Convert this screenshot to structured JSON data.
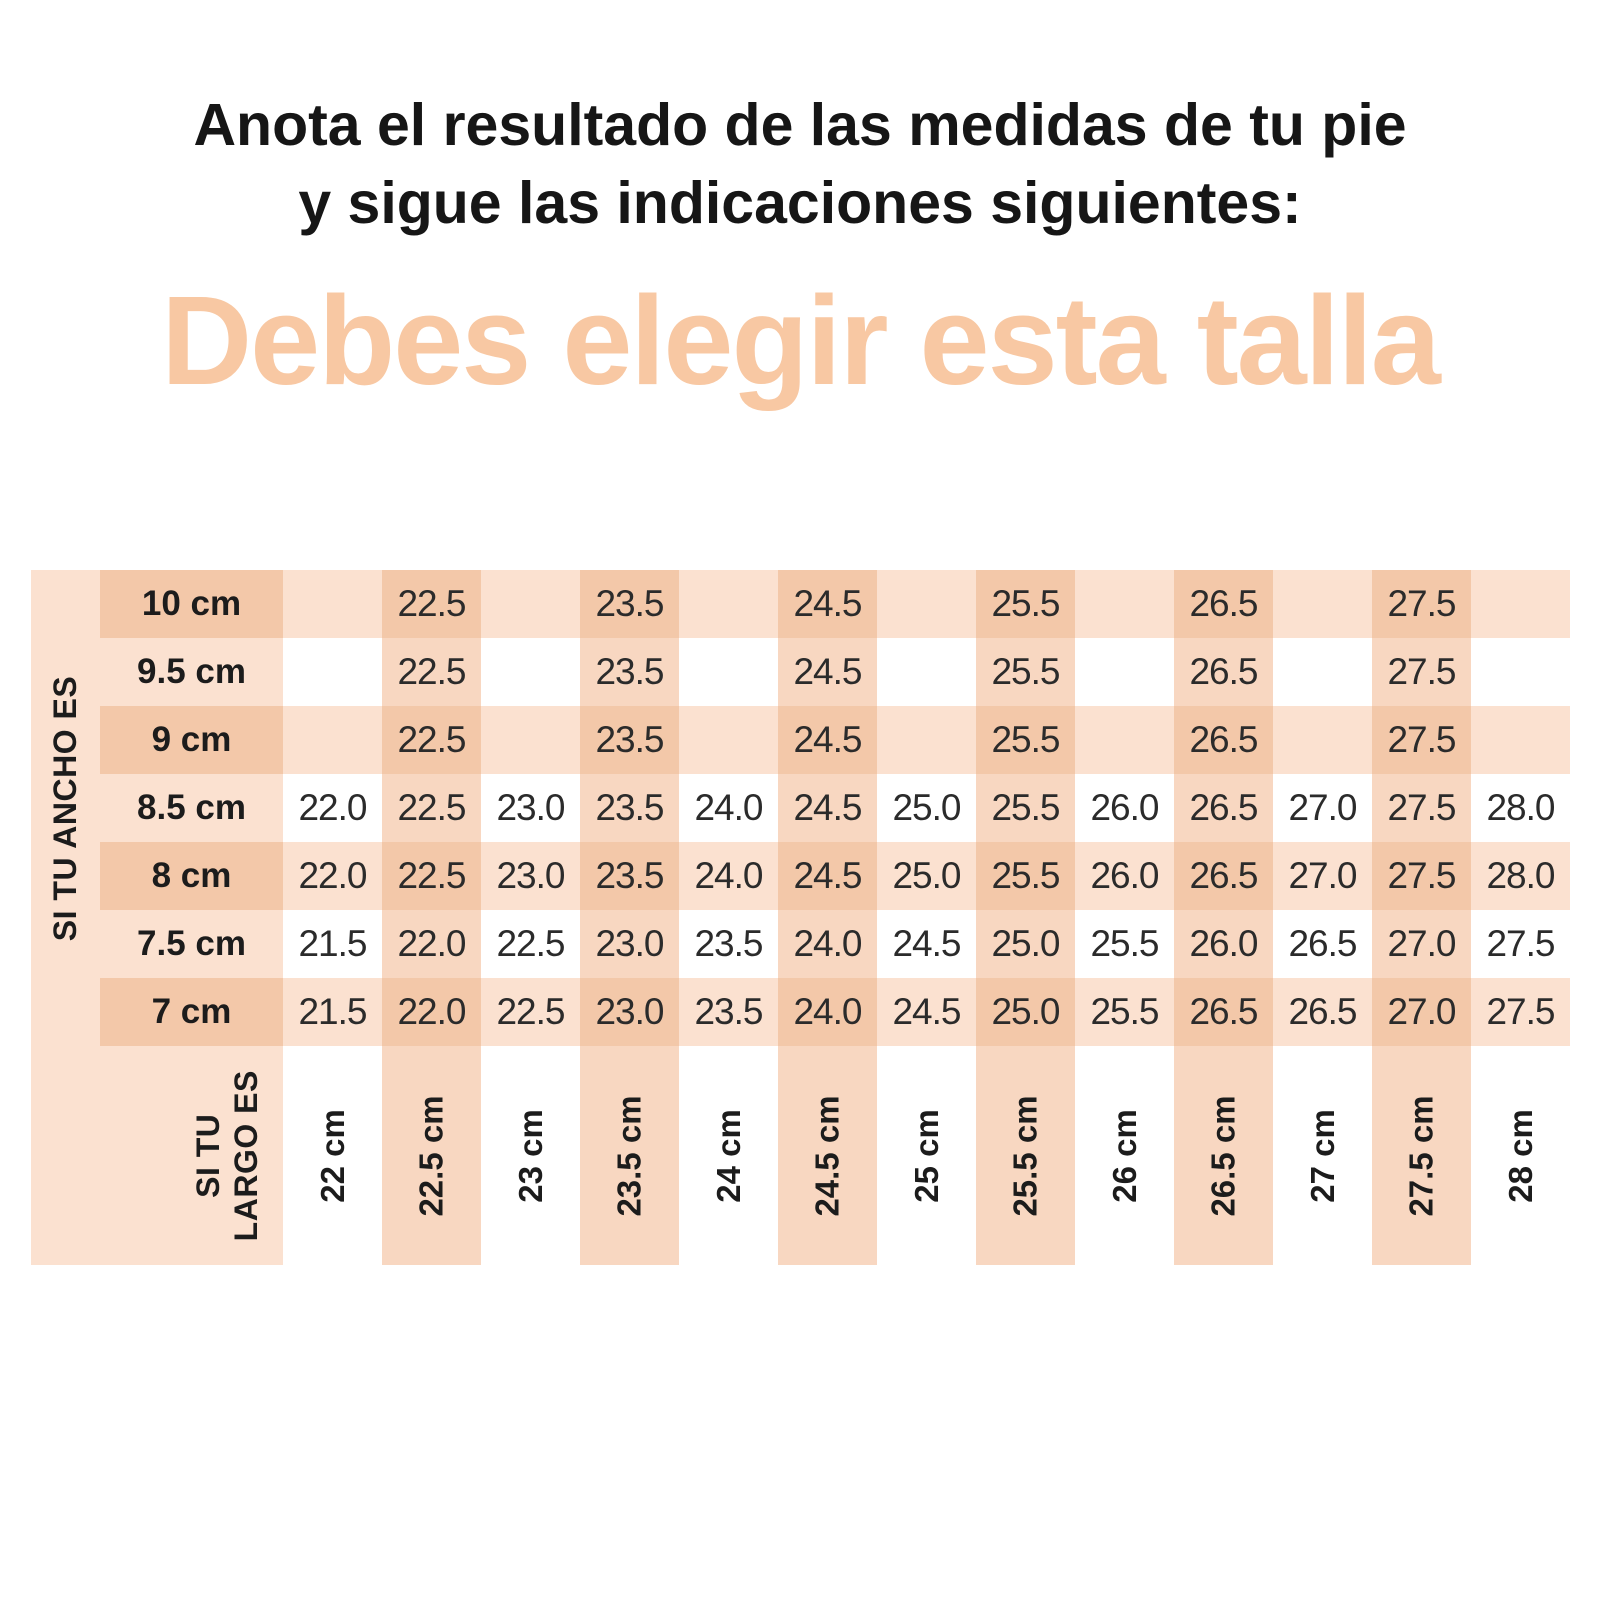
{
  "page": {
    "heading_line1": "Anota el resultado de las medidas de tu pie",
    "heading_line2": "y sigue las indicaciones siguientes:",
    "big_title": "Debes elegir esta talla"
  },
  "colors": {
    "title_peach": "#f8c8a3",
    "cell_light_peach": "#fbe1d0",
    "cell_mid_peach": "#f8d7c1",
    "cell_dark_peach": "#f3c8a9",
    "text_black": "#1c1c1c"
  },
  "chart_data": {
    "type": "table",
    "title": "Debes elegir esta talla",
    "row_axis_label": "SI TU ANCHO ES",
    "col_axis_label_lines": [
      "SI TU",
      "LARGO ES"
    ],
    "row_labels": [
      "10 cm",
      "9.5 cm",
      "9 cm",
      "8.5 cm",
      "8 cm",
      "7.5 cm",
      "7 cm"
    ],
    "col_labels": [
      "22 cm",
      "22.5 cm",
      "23 cm",
      "23.5 cm",
      "24 cm",
      "24.5 cm",
      "25 cm",
      "25.5 cm",
      "26 cm",
      "26.5 cm",
      "27 cm",
      "27.5 cm",
      "28 cm"
    ],
    "cells": [
      [
        "",
        "22.5",
        "",
        "23.5",
        "",
        "24.5",
        "",
        "25.5",
        "",
        "26.5",
        "",
        "27.5",
        ""
      ],
      [
        "",
        "22.5",
        "",
        "23.5",
        "",
        "24.5",
        "",
        "25.5",
        "",
        "26.5",
        "",
        "27.5",
        ""
      ],
      [
        "",
        "22.5",
        "",
        "23.5",
        "",
        "24.5",
        "",
        "25.5",
        "",
        "26.5",
        "",
        "27.5",
        ""
      ],
      [
        "22.0",
        "22.5",
        "23.0",
        "23.5",
        "24.0",
        "24.5",
        "25.0",
        "25.5",
        "26.0",
        "26.5",
        "27.0",
        "27.5",
        "28.0"
      ],
      [
        "22.0",
        "22.5",
        "23.0",
        "23.5",
        "24.0",
        "24.5",
        "25.0",
        "25.5",
        "26.0",
        "26.5",
        "27.0",
        "27.5",
        "28.0"
      ],
      [
        "21.5",
        "22.0",
        "22.5",
        "23.0",
        "23.5",
        "24.0",
        "24.5",
        "25.0",
        "25.5",
        "26.0",
        "26.5",
        "27.0",
        "27.5"
      ],
      [
        "21.5",
        "22.0",
        "22.5",
        "23.0",
        "23.5",
        "24.0",
        "24.5",
        "25.0",
        "25.5",
        "26.5",
        "26.5",
        "27.0",
        "27.5"
      ]
    ],
    "layout": {
      "grid": "gingham",
      "peach_columns": "half-size columns",
      "peach_rows": "alternating starting at 10 cm"
    }
  }
}
